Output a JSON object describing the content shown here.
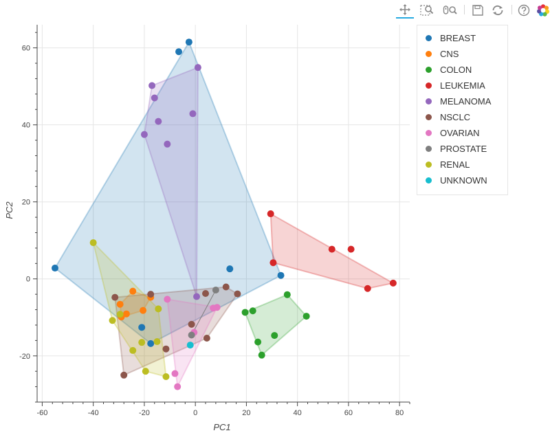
{
  "toolbar": {
    "tools": [
      {
        "name": "pan-tool",
        "icon": "move-icon",
        "active": true
      },
      {
        "name": "box-zoom-tool",
        "icon": "box-zoom-icon",
        "active": false
      },
      {
        "name": "wheel-zoom-tool",
        "icon": "wheel-zoom-icon",
        "active": false
      },
      {
        "name": "save-tool",
        "icon": "save-icon",
        "active": false
      },
      {
        "name": "reset-tool",
        "icon": "reset-icon",
        "active": false
      },
      {
        "name": "help-tool",
        "icon": "help-icon",
        "active": false
      },
      {
        "name": "bokeh-logo",
        "icon": "bokeh-logo-icon",
        "active": false
      }
    ],
    "accent_color": "#26aae1"
  },
  "chart_data": {
    "type": "scatter",
    "xlabel": "PC1",
    "ylabel": "PC2",
    "xlim": [
      -62,
      84
    ],
    "ylim": [
      -32,
      66
    ],
    "xticks": [
      -60,
      -40,
      -20,
      0,
      20,
      40,
      60,
      80
    ],
    "yticks": [
      -20,
      0,
      20,
      40,
      60
    ],
    "xtick_labels": [
      "-60",
      "-40",
      "-20",
      "0",
      "20",
      "40",
      "60",
      "80"
    ],
    "ytick_labels": [
      "-20",
      "0",
      "20",
      "40",
      "60"
    ],
    "grid": true,
    "legend_position": "right",
    "series": [
      {
        "name": "BREAST",
        "color": "#1f77b4",
        "points": [
          [
            -55,
            2.8
          ],
          [
            -6.5,
            59
          ],
          [
            -2.5,
            61.5
          ],
          [
            13.5,
            2.6
          ],
          [
            33.5,
            0.9
          ],
          [
            -21,
            -12.6
          ],
          [
            -17.5,
            -16.8
          ]
        ],
        "hull": [
          [
            -55,
            2.8
          ],
          [
            -2.5,
            61.5
          ],
          [
            33.5,
            0.9
          ],
          [
            -17.5,
            -16.8
          ]
        ]
      },
      {
        "name": "CNS",
        "color": "#ff7f0e",
        "points": [
          [
            -24.5,
            -3.2
          ],
          [
            -17.5,
            -4.8
          ],
          [
            -29.5,
            -6.6
          ],
          [
            -20.5,
            -8.2
          ],
          [
            -27,
            -9.1
          ],
          [
            -29,
            -9.9
          ]
        ],
        "hull": [
          [
            -29.5,
            -6.6
          ],
          [
            -24.5,
            -3.2
          ],
          [
            -17.5,
            -4.8
          ],
          [
            -20.5,
            -8.2
          ],
          [
            -29,
            -9.9
          ]
        ]
      },
      {
        "name": "COLON",
        "color": "#2ca02c",
        "points": [
          [
            36,
            -4.1
          ],
          [
            43.5,
            -9.7
          ],
          [
            19.5,
            -8.7
          ],
          [
            22.5,
            -8.3
          ],
          [
            31,
            -14.7
          ],
          [
            24.5,
            -16.4
          ],
          [
            26,
            -19.8
          ]
        ],
        "hull": [
          [
            19.5,
            -8.7
          ],
          [
            36,
            -4.1
          ],
          [
            43.5,
            -9.7
          ],
          [
            26,
            -19.8
          ]
        ]
      },
      {
        "name": "LEUKEMIA",
        "color": "#d62728",
        "points": [
          [
            29.5,
            16.9
          ],
          [
            30.5,
            4.2
          ],
          [
            53.5,
            7.7
          ],
          [
            61,
            7.7
          ],
          [
            67.5,
            -2.5
          ],
          [
            77.5,
            -1.1
          ]
        ],
        "hull": [
          [
            29.5,
            16.9
          ],
          [
            77.5,
            -1.1
          ],
          [
            67.5,
            -2.5
          ],
          [
            30.5,
            4.2
          ]
        ]
      },
      {
        "name": "MELANOMA",
        "color": "#9467bd",
        "points": [
          [
            1,
            54.9
          ],
          [
            -17,
            50.2
          ],
          [
            -16,
            47
          ],
          [
            -14.5,
            40.9
          ],
          [
            -1,
            42.9
          ],
          [
            -20,
            37.5
          ],
          [
            -11,
            35
          ],
          [
            0.5,
            -4.6
          ]
        ],
        "hull": [
          [
            -17,
            50.2
          ],
          [
            1,
            54.9
          ],
          [
            0.5,
            -4.6
          ],
          [
            -20,
            37.5
          ]
        ]
      },
      {
        "name": "NSCLC",
        "color": "#8c564b",
        "points": [
          [
            -31.5,
            -4.8
          ],
          [
            -17.5,
            -4
          ],
          [
            12,
            -2.1
          ],
          [
            16.5,
            -3.9
          ],
          [
            4,
            -3.8
          ],
          [
            -1.5,
            -11.8
          ],
          [
            4.5,
            -15.4
          ],
          [
            -11.5,
            -18.2
          ],
          [
            -28,
            -25
          ]
        ],
        "hull": [
          [
            -31.5,
            -4.8
          ],
          [
            12,
            -2.1
          ],
          [
            16.5,
            -3.9
          ],
          [
            4.5,
            -15.4
          ],
          [
            -28,
            -25
          ]
        ]
      },
      {
        "name": "OVARIAN",
        "color": "#e377c2",
        "points": [
          [
            -11,
            -5.3
          ],
          [
            7,
            -7.6
          ],
          [
            8.5,
            -7.4
          ],
          [
            -0.5,
            -13.9
          ],
          [
            -8,
            -24.6
          ],
          [
            -7,
            -28
          ]
        ],
        "hull": [
          [
            -11,
            -5.3
          ],
          [
            8.5,
            -7.4
          ],
          [
            -7,
            -28
          ]
        ]
      },
      {
        "name": "PROSTATE",
        "color": "#7f7f7f",
        "points": [
          [
            8,
            -2.9
          ],
          [
            -1.5,
            -14.6
          ]
        ],
        "hull": []
      },
      {
        "name": "RENAL",
        "color": "#bcbd22",
        "points": [
          [
            -40,
            9.4
          ],
          [
            -32.5,
            -10.8
          ],
          [
            -29.5,
            -9.2
          ],
          [
            -14.5,
            -7.8
          ],
          [
            -24.5,
            -18.6
          ],
          [
            -21,
            -16.5
          ],
          [
            -15,
            -16.3
          ],
          [
            -19.5,
            -24
          ],
          [
            -11.5,
            -25.4
          ]
        ],
        "hull": [
          [
            -40,
            9.4
          ],
          [
            -14.5,
            -7.8
          ],
          [
            -11.5,
            -25.4
          ],
          [
            -19.5,
            -24
          ],
          [
            -32.5,
            -10.8
          ]
        ]
      },
      {
        "name": "UNKNOWN",
        "color": "#17becf",
        "points": [
          [
            -2,
            -17.2
          ]
        ],
        "hull": []
      }
    ]
  }
}
